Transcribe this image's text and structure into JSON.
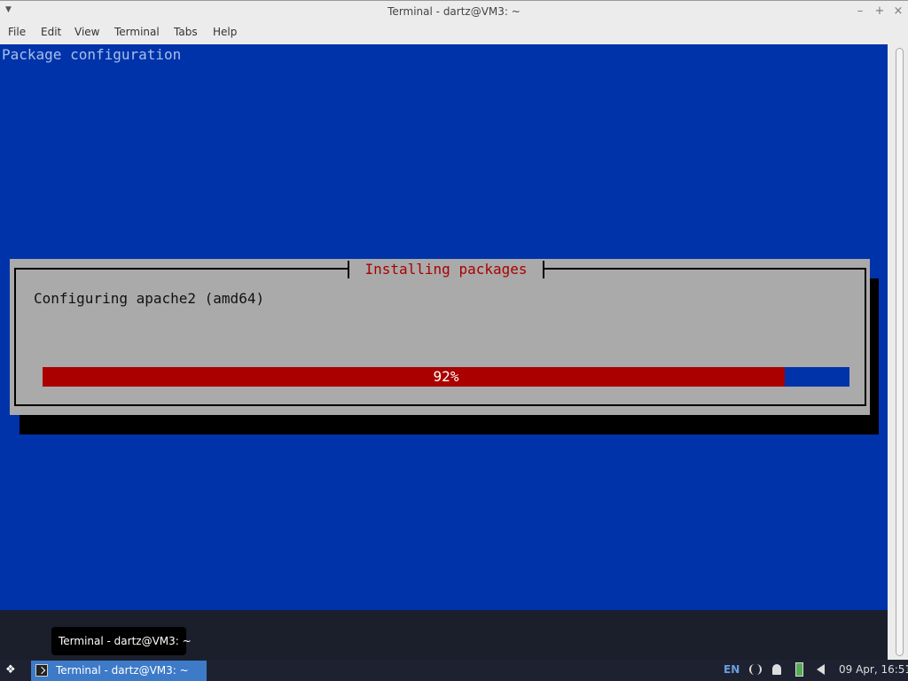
{
  "window": {
    "title": "Terminal - dartz@VM3: ~",
    "menu": [
      "File",
      "Edit",
      "View",
      "Terminal",
      "Tabs",
      "Help"
    ]
  },
  "terminal": {
    "header": "Package configuration",
    "dialog_title": "Installing packages",
    "message": "Configuring apache2 (amd64)",
    "progress_label": "92%",
    "progress": 92
  },
  "taskbar": {
    "tooltip": "Terminal - dartz@VM3: ~",
    "task_label": "Terminal - dartz@VM3: ~",
    "lang": "EN",
    "clock": "09 Apr, 16:51"
  }
}
